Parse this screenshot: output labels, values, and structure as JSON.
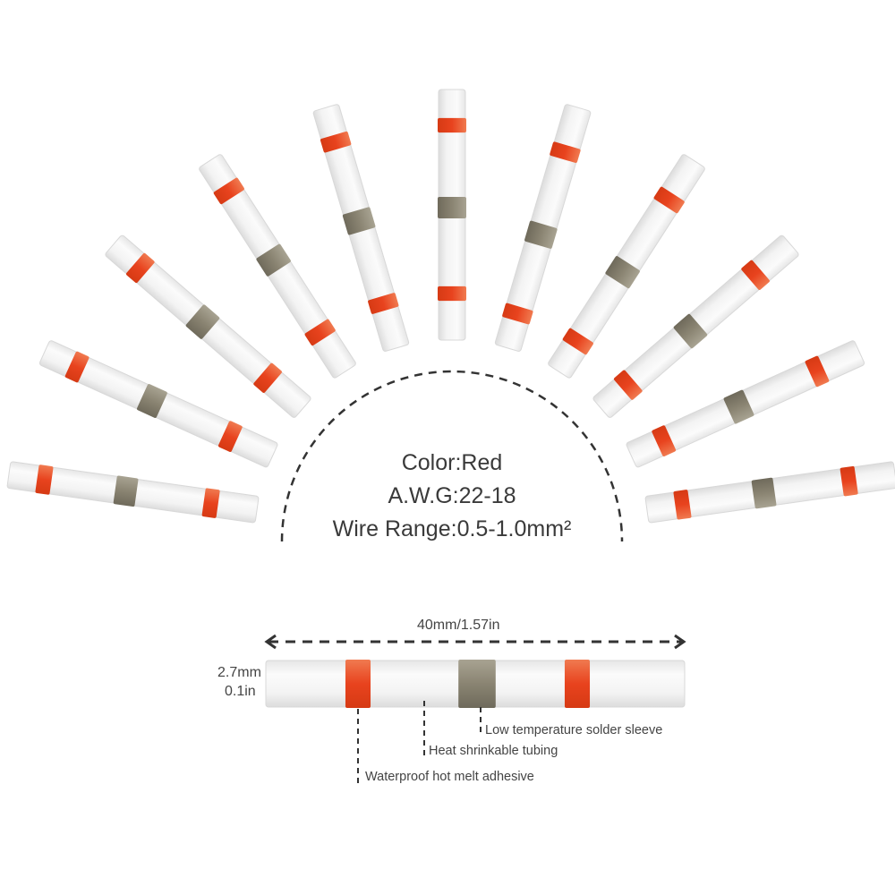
{
  "specs": {
    "color": "Color:Red",
    "awg": "A.W.G:22-18",
    "wire_range": "Wire  Range:0.5-1.0mm²"
  },
  "dimensions": {
    "length": "40mm/1.57in",
    "diameter_mm": "2.7mm",
    "diameter_in": "0.1in"
  },
  "callouts": {
    "solder": "Low temperature solder sleeve",
    "tubing": "Heat shrinkable tubing",
    "adhesive": "Waterproof hot melt adhesive"
  },
  "colors": {
    "band_red": "#e8431e",
    "solder": "#8a8472",
    "tube": "#f1f1f1",
    "dash": "#333333"
  },
  "fan_count": 11
}
